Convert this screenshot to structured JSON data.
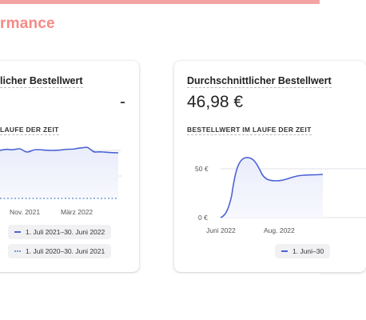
{
  "header": {
    "section_title": "rmance",
    "accent_color": "#f3a3a1",
    "title_color": "#f58a87"
  },
  "left_card": {
    "title": "licher Bestellwert",
    "metric_value": "-",
    "chart_label": "LAUFE DER ZEIT",
    "x_ticks": [
      "Nov. 2021",
      "März 2022"
    ],
    "legend": [
      {
        "label": "1. Juli 2021–30. Juni 2022",
        "style": "solid",
        "color": "#4b62d6"
      },
      {
        "label": "1. Juli 2020–30. Juni 2021",
        "style": "dotted",
        "color": "#6d9bd9"
      }
    ]
  },
  "right_card": {
    "title": "Durchschnittlicher Bestellwert",
    "metric_value": "46,98 €",
    "chart_label": "BESTELLWERT IM LAUFE DER ZEIT",
    "y_ticks": [
      "50 €",
      "0 €"
    ],
    "x_ticks": [
      "Juni 2022",
      "Aug. 2022"
    ],
    "legend": [
      {
        "label": "1. Juni–30",
        "style": "solid",
        "color": "#4b62d6"
      }
    ]
  },
  "colors": {
    "series_line": "#4b62d6",
    "series_fill": "#eef0fb",
    "grid": "#e2e2e8"
  }
}
